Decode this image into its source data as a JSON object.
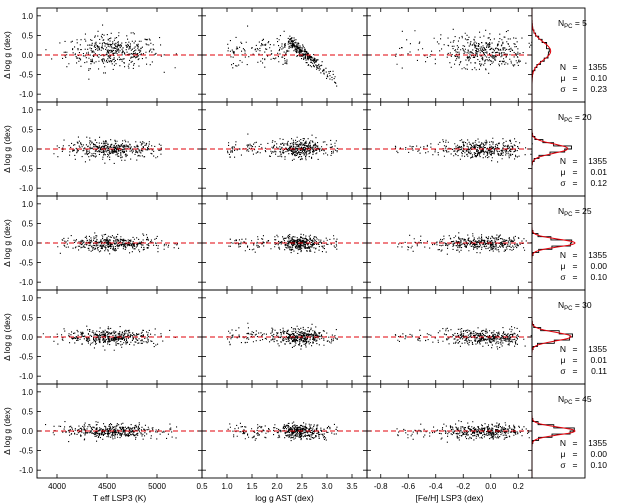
{
  "chart_data": {
    "type": "scatter",
    "rows": [
      {
        "npc": "5",
        "n": "1355",
        "mu": "0.10",
        "sigma": "0.23"
      },
      {
        "npc": "20",
        "n": "1355",
        "mu": "0.01",
        "sigma": "0.12"
      },
      {
        "npc": "25",
        "n": "1355",
        "mu": "0.00",
        "sigma": "0.10"
      },
      {
        "npc": "30",
        "n": "1355",
        "mu": "0.01",
        "sigma": "0.11"
      },
      {
        "npc": "45",
        "n": "1355",
        "mu": "0.00",
        "sigma": "0.10"
      }
    ],
    "ylabel": "Δ log g  (dex)",
    "ylim": [
      -1.2,
      1.2
    ],
    "yticks": [
      "1.0",
      "0.5",
      "0.0",
      "-0.5",
      "-1.0"
    ],
    "columns": [
      {
        "xlabel": "T eff LSP3 (K)",
        "xlim": [
          3800,
          5450
        ],
        "xticks": [
          "4000",
          "4500",
          "5000"
        ]
      },
      {
        "xlabel": "log g AST (dex)",
        "xlim": [
          0.5,
          3.8
        ],
        "xticks": [
          "0.5",
          "1.0",
          "1.5",
          "2.0",
          "2.5",
          "3.0",
          "3.5"
        ]
      },
      {
        "xlabel": "[Fe/H] LSP3 (dex)",
        "xlim": [
          -0.9,
          0.3
        ],
        "xticks": [
          "-0.8",
          "-0.6",
          "-0.4",
          "-0.2",
          "0.0",
          "0.2"
        ]
      }
    ],
    "stat_labels": {
      "npc": "N",
      "npc_sub": "PC",
      "n": "N",
      "mu": "μ",
      "sigma": "σ"
    },
    "reference_line": 0.0,
    "colors": {
      "points": "#000000",
      "zero_line": "#e0000a",
      "hist": "#000000",
      "gauss": "#e0000a"
    }
  }
}
